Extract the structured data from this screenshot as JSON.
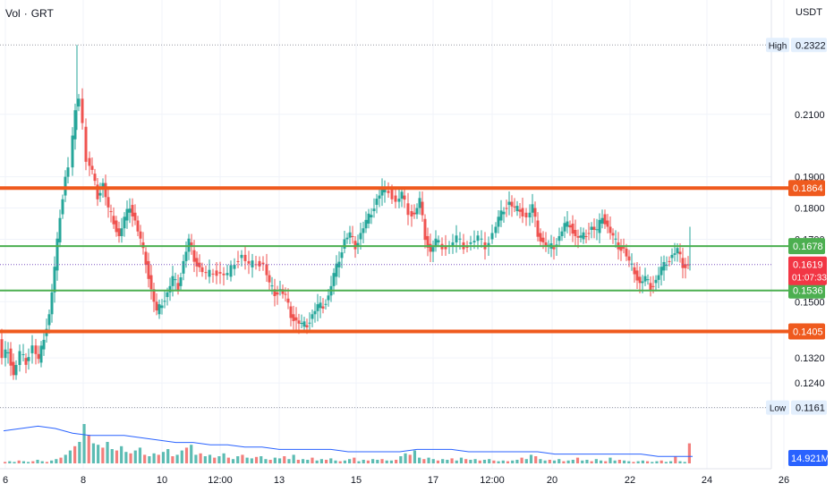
{
  "header": {
    "indicator": "Vol",
    "separator": "·",
    "symbol": "GRT",
    "currency": "USDT"
  },
  "chart_data": {
    "type": "candlestick",
    "y_axis": {
      "ticks": [
        "0.2100",
        "0.1900",
        "0.1800",
        "0.1700",
        "0.1500",
        "0.1320",
        "0.1240",
        "0.1160"
      ],
      "range": [
        0.112,
        0.238
      ]
    },
    "x_axis": {
      "ticks": [
        "6",
        "8",
        "10",
        "12:00",
        "13",
        "15",
        "17",
        "12:00",
        "20",
        "22",
        "24",
        "26"
      ]
    },
    "price_labels": {
      "high": {
        "label": "High",
        "value": "0.2322"
      },
      "low": {
        "label": "Low",
        "value": "0.1161"
      },
      "current": {
        "value": "0.1619",
        "countdown": "01:07:33"
      },
      "volume": {
        "value": "14.921M"
      }
    },
    "horizontal_lines": [
      {
        "value": 0.1864,
        "label": "0.1864",
        "color": "#ef5a1e",
        "weight": "thick"
      },
      {
        "value": 0.1678,
        "label": "0.1678",
        "color": "#4caf50",
        "weight": "thin"
      },
      {
        "value": 0.1536,
        "label": "0.1536",
        "color": "#4caf50",
        "weight": "thin"
      },
      {
        "value": 0.1405,
        "label": "0.1405",
        "color": "#ef5a1e",
        "weight": "thick"
      }
    ],
    "price_path": [
      [
        0,
        0.138
      ],
      [
        4,
        0.132
      ],
      [
        10,
        0.135
      ],
      [
        16,
        0.1265
      ],
      [
        24,
        0.133
      ],
      [
        30,
        0.131
      ],
      [
        38,
        0.136
      ],
      [
        44,
        0.1305
      ],
      [
        50,
        0.139
      ],
      [
        56,
        0.146
      ],
      [
        62,
        0.16
      ],
      [
        68,
        0.178
      ],
      [
        74,
        0.19
      ],
      [
        79,
        0.193
      ],
      [
        82,
        0.202
      ],
      [
        86,
        0.2125
      ],
      [
        90,
        0.215
      ],
      [
        94,
        0.206
      ],
      [
        98,
        0.196
      ],
      [
        104,
        0.191
      ],
      [
        110,
        0.184
      ],
      [
        116,
        0.188
      ],
      [
        122,
        0.179
      ],
      [
        128,
        0.176
      ],
      [
        134,
        0.171
      ],
      [
        140,
        0.176
      ],
      [
        146,
        0.181
      ],
      [
        152,
        0.176
      ],
      [
        158,
        0.169
      ],
      [
        164,
        0.163
      ],
      [
        170,
        0.154
      ],
      [
        176,
        0.146
      ],
      [
        182,
        0.15
      ],
      [
        188,
        0.153
      ],
      [
        194,
        0.157
      ],
      [
        200,
        0.155
      ],
      [
        206,
        0.163
      ],
      [
        212,
        0.169
      ],
      [
        218,
        0.164
      ],
      [
        224,
        0.161
      ],
      [
        232,
        0.158
      ],
      [
        240,
        0.16
      ],
      [
        248,
        0.159
      ],
      [
        256,
        0.158
      ],
      [
        264,
        0.163
      ],
      [
        272,
        0.165
      ],
      [
        280,
        0.161
      ],
      [
        288,
        0.163
      ],
      [
        296,
        0.162
      ],
      [
        302,
        0.155
      ],
      [
        308,
        0.153
      ],
      [
        314,
        0.154
      ],
      [
        320,
        0.151
      ],
      [
        326,
        0.146
      ],
      [
        332,
        0.144
      ],
      [
        338,
        0.142
      ],
      [
        344,
        0.143
      ],
      [
        350,
        0.146
      ],
      [
        356,
        0.148
      ],
      [
        362,
        0.149
      ],
      [
        368,
        0.152
      ],
      [
        374,
        0.158
      ],
      [
        380,
        0.164
      ],
      [
        386,
        0.17
      ],
      [
        392,
        0.171
      ],
      [
        398,
        0.168
      ],
      [
        404,
        0.172
      ],
      [
        410,
        0.175
      ],
      [
        416,
        0.179
      ],
      [
        422,
        0.183
      ],
      [
        428,
        0.185
      ],
      [
        436,
        0.186
      ],
      [
        444,
        0.182
      ],
      [
        450,
        0.184
      ],
      [
        458,
        0.179
      ],
      [
        464,
        0.178
      ],
      [
        470,
        0.182
      ],
      [
        476,
        0.171
      ],
      [
        482,
        0.166
      ],
      [
        488,
        0.169
      ],
      [
        496,
        0.168
      ],
      [
        504,
        0.168
      ],
      [
        512,
        0.17
      ],
      [
        520,
        0.168
      ],
      [
        528,
        0.169
      ],
      [
        536,
        0.17
      ],
      [
        544,
        0.168
      ],
      [
        552,
        0.172
      ],
      [
        558,
        0.176
      ],
      [
        564,
        0.18
      ],
      [
        570,
        0.182
      ],
      [
        576,
        0.179
      ],
      [
        582,
        0.18
      ],
      [
        590,
        0.177
      ],
      [
        596,
        0.18
      ],
      [
        602,
        0.172
      ],
      [
        608,
        0.169
      ],
      [
        614,
        0.167
      ],
      [
        620,
        0.168
      ],
      [
        626,
        0.171
      ],
      [
        632,
        0.174
      ],
      [
        638,
        0.175
      ],
      [
        644,
        0.171
      ],
      [
        650,
        0.17
      ],
      [
        656,
        0.172
      ],
      [
        662,
        0.174
      ],
      [
        668,
        0.172
      ],
      [
        674,
        0.178
      ],
      [
        680,
        0.174
      ],
      [
        686,
        0.17
      ],
      [
        692,
        0.168
      ],
      [
        698,
        0.167
      ],
      [
        704,
        0.162
      ],
      [
        710,
        0.16
      ],
      [
        716,
        0.156
      ],
      [
        722,
        0.157
      ],
      [
        728,
        0.155
      ],
      [
        734,
        0.157
      ],
      [
        740,
        0.16
      ],
      [
        746,
        0.163
      ],
      [
        752,
        0.165
      ],
      [
        758,
        0.166
      ],
      [
        764,
        0.162
      ],
      [
        770,
        0.1619
      ]
    ],
    "volume_heights": [
      2,
      3,
      2,
      4,
      3,
      2,
      3,
      5,
      3,
      2,
      4,
      6,
      8,
      12,
      18,
      24,
      30,
      55,
      40,
      28,
      26,
      22,
      30,
      20,
      18,
      24,
      16,
      14,
      18,
      22,
      12,
      10,
      14,
      12,
      16,
      20,
      10,
      12,
      18,
      22,
      26,
      12,
      14,
      10,
      12,
      8,
      10,
      14,
      8,
      6,
      10,
      12,
      8,
      7,
      9,
      10,
      6,
      5,
      8,
      7,
      10,
      6,
      12,
      5,
      6,
      5,
      8,
      4,
      6,
      5,
      7,
      4,
      3,
      4,
      6,
      8,
      3,
      5,
      4,
      6,
      5,
      6,
      4,
      4,
      5,
      10,
      14,
      12,
      18,
      8,
      6,
      8,
      6,
      4,
      6,
      5,
      7,
      4,
      8,
      6,
      5,
      6,
      4,
      5,
      6,
      4,
      3,
      4,
      3,
      4,
      5,
      8,
      6,
      12,
      10,
      6,
      4,
      5,
      4,
      6,
      3,
      4,
      5,
      8,
      4,
      5,
      3,
      6,
      4,
      3,
      8,
      4,
      5,
      4,
      3,
      2,
      3,
      4,
      3,
      2,
      3,
      4,
      2,
      3,
      10,
      3,
      2,
      28
    ],
    "volume_ma": [
      14,
      15,
      16,
      15,
      13,
      12,
      12,
      12,
      11,
      10,
      9,
      9,
      8,
      8,
      7,
      7,
      6,
      6,
      6,
      6,
      5,
      5,
      5,
      5,
      6,
      6,
      6,
      5,
      5,
      5,
      5,
      5,
      4,
      4,
      4,
      4,
      4,
      4,
      3,
      3,
      3
    ]
  },
  "colors": {
    "up": "#26a69a",
    "down": "#ef5350",
    "current_label": "#f23645",
    "volume_label": "#2962ff",
    "volume_ma": "#2962ff",
    "grid": "#f0f3fa",
    "axis_text": "#131722",
    "hi_lo_label_bg": "#e3effd"
  }
}
